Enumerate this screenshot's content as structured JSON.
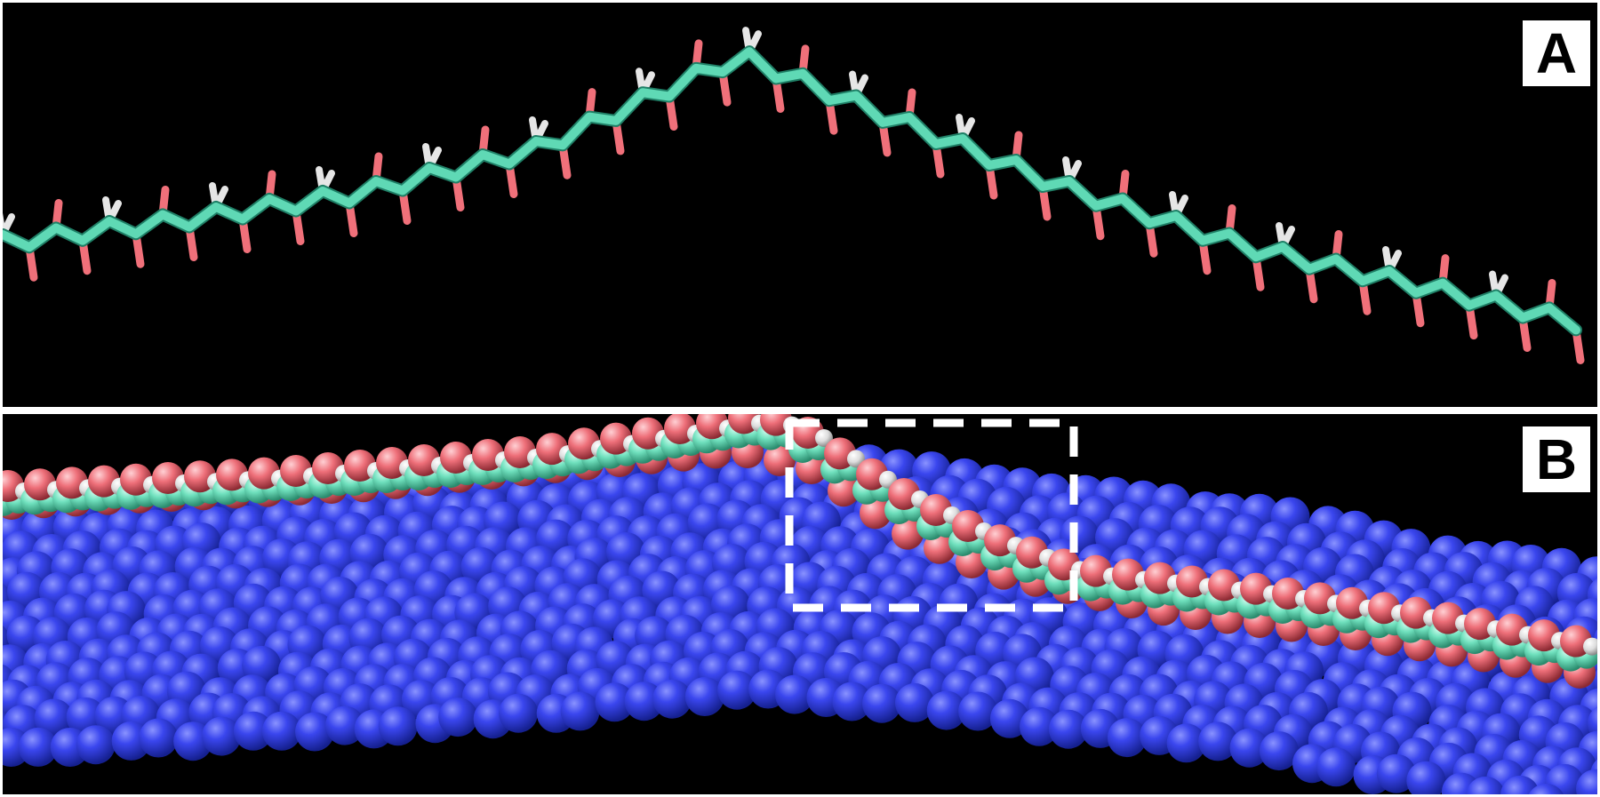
{
  "panels": [
    {
      "id": "A",
      "label": "A"
    },
    {
      "id": "B",
      "label": "B"
    }
  ],
  "colors": {
    "background": "#000000",
    "border": "#ffffff",
    "carbon": "#5fd9b5",
    "oxygen": "#f0707a",
    "hydrogen": "#e6e6e6",
    "surface_atoms": "#3340e8",
    "highlight_box": "#ffffff"
  }
}
